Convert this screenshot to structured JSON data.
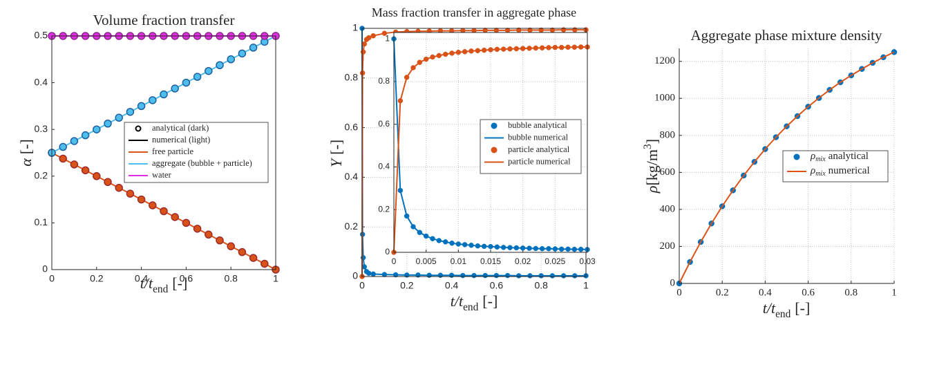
{
  "chart_data": [
    {
      "type": "line",
      "title": "Volume fraction transfer",
      "xlabel": {
        "var": "t/t",
        "sub": "end",
        "unit": "[-]"
      },
      "ylabel": {
        "var": "α",
        "unit": "[-]"
      },
      "xlim": [
        0,
        1
      ],
      "ylim": [
        0,
        0.5
      ],
      "xticks": [
        0,
        0.2,
        0.4,
        0.6,
        0.8,
        1
      ],
      "yticks": [
        0,
        0.1,
        0.2,
        0.3,
        0.4,
        0.5
      ],
      "grid": false,
      "box": true,
      "legend": [
        {
          "label": "analytical (dark)",
          "marker": "circle",
          "color": "#000000"
        },
        {
          "label": "numerical (light)",
          "marker": "line",
          "color": "#000000"
        }
      ],
      "series": [
        {
          "name": "free particle",
          "color": "#d95319",
          "marker_edge": "#9c2a2a",
          "marker": "circle",
          "x": [
            0,
            0.05,
            0.1,
            0.15,
            0.2,
            0.25,
            0.3,
            0.35,
            0.4,
            0.45,
            0.5,
            0.55,
            0.6,
            0.65,
            0.7,
            0.75,
            0.8,
            0.85,
            0.9,
            0.95,
            1
          ],
          "values": [
            0.25,
            0.2375,
            0.225,
            0.2125,
            0.2,
            0.1875,
            0.175,
            0.1625,
            0.15,
            0.1375,
            0.125,
            0.1125,
            0.1,
            0.0875,
            0.075,
            0.0625,
            0.05,
            0.0375,
            0.025,
            0.0125,
            0
          ]
        },
        {
          "name": "aggregate (bubble + particle)",
          "color": "#4dbeee",
          "marker_edge": "#1f5f9e",
          "marker": "circle",
          "x": [
            0,
            0.05,
            0.1,
            0.15,
            0.2,
            0.25,
            0.3,
            0.35,
            0.4,
            0.45,
            0.5,
            0.55,
            0.6,
            0.65,
            0.7,
            0.75,
            0.8,
            0.85,
            0.9,
            0.95,
            1
          ],
          "values": [
            0.25,
            0.2625,
            0.275,
            0.2875,
            0.3,
            0.3125,
            0.325,
            0.3375,
            0.35,
            0.3625,
            0.375,
            0.3875,
            0.4,
            0.4125,
            0.425,
            0.4375,
            0.45,
            0.4625,
            0.475,
            0.4875,
            0.5
          ]
        },
        {
          "name": "water",
          "color": "#e02ee0",
          "marker_edge": "#8e2a8e",
          "marker": "circle",
          "x": [
            0,
            0.05,
            0.1,
            0.15,
            0.2,
            0.25,
            0.3,
            0.35,
            0.4,
            0.45,
            0.5,
            0.55,
            0.6,
            0.65,
            0.7,
            0.75,
            0.8,
            0.85,
            0.9,
            0.95,
            1
          ],
          "values": [
            0.5,
            0.5,
            0.5,
            0.5,
            0.5,
            0.5,
            0.5,
            0.5,
            0.5,
            0.5,
            0.5,
            0.5,
            0.5,
            0.5,
            0.5,
            0.5,
            0.5,
            0.5,
            0.5,
            0.5,
            0.5
          ]
        }
      ]
    },
    {
      "type": "line",
      "title": "Mass fraction transfer in aggregate phase",
      "xlabel": {
        "var": "t/t",
        "sub": "end",
        "unit": "[-]"
      },
      "ylabel": {
        "var": "Y",
        "unit": "[-]"
      },
      "xlim": [
        0,
        1
      ],
      "ylim": [
        0,
        1
      ],
      "xticks": [
        0,
        0.2,
        0.4,
        0.6,
        0.8,
        1
      ],
      "yticks": [
        0,
        0.2,
        0.4,
        0.6,
        0.8,
        1
      ],
      "grid": true,
      "box": true,
      "legend": [
        {
          "label": "bubble analytical",
          "marker": "circle",
          "color": "#0072bd"
        },
        {
          "label": "bubble numerical",
          "marker": "line",
          "color": "#0072bd"
        },
        {
          "label": "particle analytical",
          "marker": "circle",
          "color": "#d95319"
        },
        {
          "label": "particle numerical",
          "marker": "line",
          "color": "#d95319"
        }
      ],
      "series": [
        {
          "color": "#0072bd",
          "marker": "circle",
          "x": [
            0,
            0.002,
            0.005,
            0.01,
            0.02,
            0.03,
            0.05,
            0.1,
            0.15,
            0.2,
            0.25,
            0.3,
            0.35,
            0.4,
            0.45,
            0.5,
            0.55,
            0.6,
            0.65,
            0.7,
            0.75,
            0.8,
            0.85,
            0.9,
            0.95,
            1
          ],
          "values": [
            1,
            0.17,
            0.076,
            0.039,
            0.02,
            0.013,
            0.01,
            0.008,
            0.007,
            0.006,
            0.006,
            0.005,
            0.005,
            0.005,
            0.004,
            0.004,
            0.004,
            0.004,
            0.004,
            0.003,
            0.003,
            0.003,
            0.003,
            0.003,
            0.003,
            0.003
          ]
        },
        {
          "color": "#d95319",
          "marker": "circle",
          "x": [
            0,
            0.002,
            0.005,
            0.01,
            0.02,
            0.03,
            0.05,
            0.1,
            0.15,
            0.2,
            0.25,
            0.3,
            0.35,
            0.4,
            0.45,
            0.5,
            0.55,
            0.6,
            0.65,
            0.7,
            0.75,
            0.8,
            0.85,
            0.9,
            0.95,
            1
          ],
          "values": [
            0,
            0.82,
            0.905,
            0.937,
            0.955,
            0.962,
            0.97,
            0.98,
            0.985,
            0.987,
            0.988,
            0.989,
            0.99,
            0.99,
            0.991,
            0.991,
            0.992,
            0.992,
            0.992,
            0.993,
            0.993,
            0.993,
            0.993,
            0.994,
            0.994,
            0.994
          ]
        }
      ],
      "inset": {
        "xlim": [
          0,
          0.03
        ],
        "ylim": [
          0,
          1.03
        ],
        "xticks": [
          0,
          0.005,
          0.01,
          0.015,
          0.02,
          0.025,
          0.03
        ],
        "yticks": [
          0,
          0.2,
          0.4,
          0.6,
          0.8,
          1
        ],
        "grid": true,
        "box": true,
        "series": [
          {
            "color": "#0072bd",
            "marker": "circle",
            "x": [
              0,
              0.001,
              0.002,
              0.003,
              0.004,
              0.005,
              0.006,
              0.007,
              0.008,
              0.009,
              0.01,
              0.011,
              0.012,
              0.013,
              0.014,
              0.015,
              0.016,
              0.017,
              0.018,
              0.019,
              0.02,
              0.021,
              0.022,
              0.023,
              0.024,
              0.025,
              0.026,
              0.027,
              0.028,
              0.029,
              0.03
            ],
            "values": [
              1,
              0.29,
              0.17,
              0.12,
              0.093,
              0.076,
              0.064,
              0.055,
              0.049,
              0.043,
              0.039,
              0.036,
              0.033,
              0.03,
              0.028,
              0.027,
              0.025,
              0.023,
              0.022,
              0.021,
              0.02,
              0.019,
              0.018,
              0.017,
              0.017,
              0.016,
              0.015,
              0.015,
              0.014,
              0.014,
              0.013
            ]
          },
          {
            "color": "#d95319",
            "marker": "circle",
            "x": [
              0,
              0.001,
              0.002,
              0.003,
              0.004,
              0.005,
              0.006,
              0.007,
              0.008,
              0.009,
              0.01,
              0.011,
              0.012,
              0.013,
              0.014,
              0.015,
              0.016,
              0.017,
              0.018,
              0.019,
              0.02,
              0.021,
              0.022,
              0.023,
              0.024,
              0.025,
              0.026,
              0.027,
              0.028,
              0.029,
              0.03
            ],
            "values": [
              0,
              0.71,
              0.82,
              0.865,
              0.89,
              0.905,
              0.915,
              0.922,
              0.928,
              0.933,
              0.937,
              0.94,
              0.943,
              0.945,
              0.947,
              0.949,
              0.951,
              0.952,
              0.953,
              0.954,
              0.955,
              0.956,
              0.957,
              0.958,
              0.959,
              0.96,
              0.96,
              0.961,
              0.961,
              0.962,
              0.962
            ]
          }
        ]
      }
    },
    {
      "type": "line",
      "title": "Aggregate phase mixture density",
      "xlabel": {
        "var": "t/t",
        "sub": "end",
        "unit": "[-]"
      },
      "ylabel": {
        "var": "ρ",
        "unit": "[kg/m",
        "sup": "3",
        "close": "]"
      },
      "xlim": [
        0,
        1
      ],
      "ylim": [
        0,
        1270
      ],
      "xticks": [
        0,
        0.2,
        0.4,
        0.6,
        0.8,
        1
      ],
      "yticks": [
        0,
        200,
        400,
        600,
        800,
        1000,
        1200
      ],
      "grid": true,
      "box": false,
      "legend": [
        {
          "symbol": "ρ",
          "subscript": "mix",
          "label": "analytical",
          "marker": "circle",
          "color": "#0072bd"
        },
        {
          "symbol": "ρ",
          "subscript": "mix",
          "label": "numerical",
          "marker": "line",
          "color": "#d95319"
        }
      ],
      "series": [
        {
          "color": "#d95319",
          "marker_color": "#0072bd",
          "marker": "circle",
          "x": [
            0,
            0.05,
            0.1,
            0.15,
            0.2,
            0.25,
            0.3,
            0.35,
            0.4,
            0.45,
            0.5,
            0.55,
            0.6,
            0.65,
            0.7,
            0.75,
            0.8,
            0.85,
            0.9,
            0.95,
            1
          ],
          "values": [
            0,
            116,
            224,
            324,
            417,
            503,
            583,
            657,
            726,
            790,
            849,
            904,
            955,
            1002,
            1046,
            1087,
            1124,
            1159,
            1192,
            1222,
            1250
          ]
        }
      ]
    }
  ]
}
